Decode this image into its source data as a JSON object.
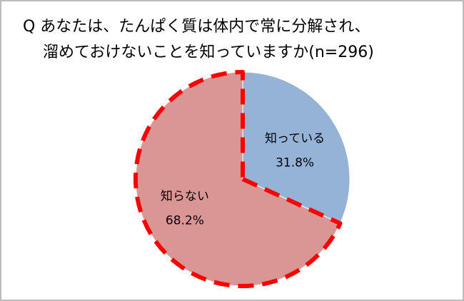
{
  "chart_data": {
    "type": "pie",
    "title": [
      "Q あなたは、たんぱく質は体内で常に分解され、",
      "溜めておけないことを知っていますか(n=296)"
    ],
    "categories": [
      "知っている",
      "知らない"
    ],
    "values": [
      31.8,
      68.2
    ],
    "value_labels": [
      "31.8%",
      "68.2%"
    ],
    "colors": [
      "#95b3d7",
      "#d99694"
    ],
    "dashed_outline": [
      false,
      true
    ],
    "outline_color": "#ff0000"
  }
}
